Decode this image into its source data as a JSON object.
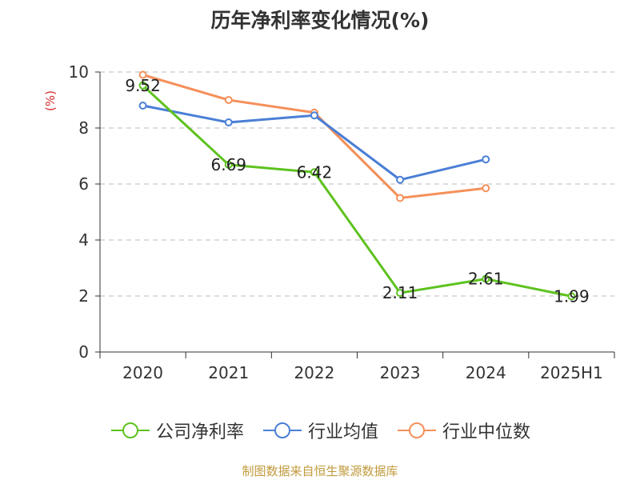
{
  "title": "历年净利率变化情况(%)",
  "source": "制图数据来自恒生聚源数据库",
  "chart_data": {
    "type": "line",
    "title": "历年净利率变化情况(%)",
    "ylabel": "(%)",
    "xlabel": "",
    "categories": [
      "2020",
      "2021",
      "2022",
      "2023",
      "2024",
      "2025H1"
    ],
    "ylim": [
      0,
      10
    ],
    "yticks": [
      0,
      2,
      4,
      6,
      8,
      10
    ],
    "grid": true,
    "legend_position": "bottom",
    "series": [
      {
        "name": "公司净利率",
        "color": "#5ec21f",
        "values": [
          9.52,
          6.69,
          6.42,
          2.11,
          2.61,
          1.99
        ],
        "labels": [
          "9.52",
          "6.69",
          "6.42",
          "2.11",
          "2.61",
          "1.99"
        ]
      },
      {
        "name": "行业均值",
        "color": "#4a7fd6",
        "values": [
          8.8,
          8.2,
          8.45,
          6.15,
          6.88,
          null
        ]
      },
      {
        "name": "行业中位数",
        "color": "#f5905a",
        "values": [
          9.9,
          9.0,
          8.55,
          5.5,
          5.85,
          null
        ]
      }
    ]
  }
}
